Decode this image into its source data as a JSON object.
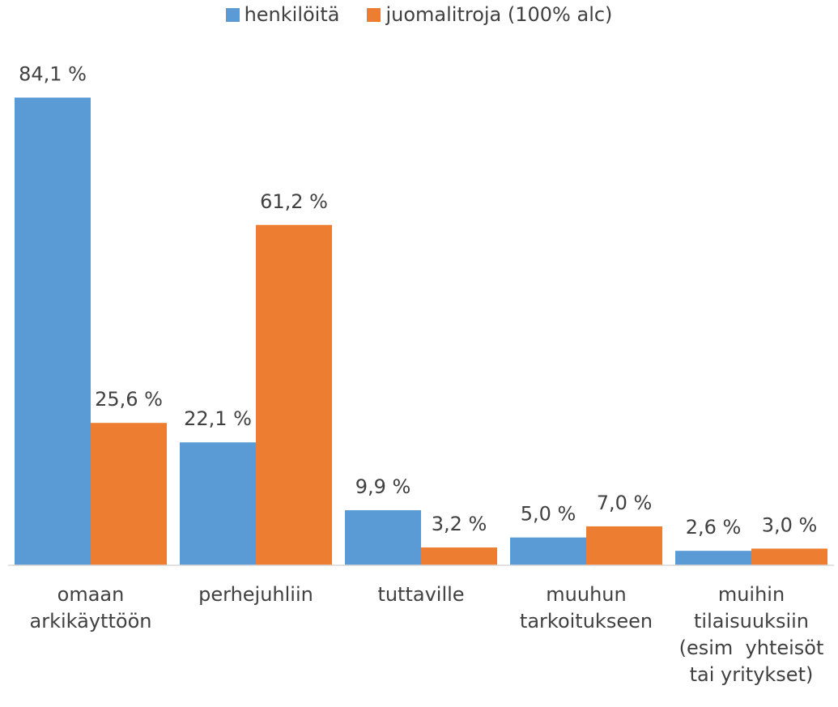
{
  "chart_data": {
    "type": "bar",
    "categories": [
      "omaan arkikäyttöön",
      "perhejuhliin",
      "tuttaville",
      "muuhun tarkoitukseen",
      "muihin tilaisuuksiin (esim  yhteisöt tai yritykset)"
    ],
    "series": [
      {
        "name": "henkilöitä",
        "color": "#5b9bd5",
        "values": [
          84.1,
          22.1,
          9.9,
          5.0,
          2.6
        ],
        "value_labels": [
          "84,1 %",
          "22,1 %",
          "9,9 %",
          "5,0 %",
          "2,6 %"
        ]
      },
      {
        "name": "juomalitroja (100% alc)",
        "color": "#ed7d31",
        "values": [
          25.6,
          61.2,
          3.2,
          7.0,
          3.0
        ],
        "value_labels": [
          "25,6 %",
          "61,2 %",
          "3,2 %",
          "7,0 %",
          "3,0 %"
        ]
      }
    ],
    "ylim": [
      0,
      90
    ],
    "legend": "top"
  }
}
